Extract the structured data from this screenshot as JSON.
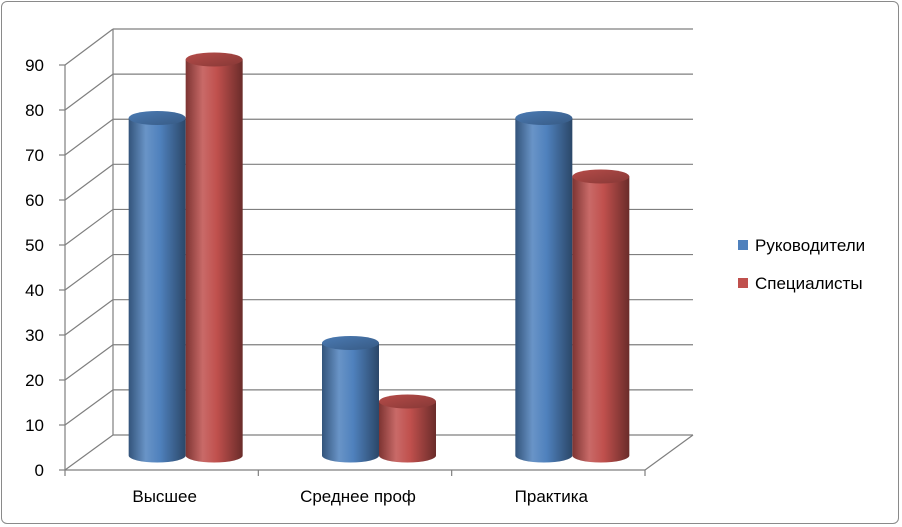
{
  "colors": {
    "series": [
      "#4f81bd",
      "#c0504d"
    ],
    "grid": "#7f7f7f",
    "background": "#ffffff"
  },
  "chart_data": {
    "type": "bar",
    "style": "3d-cylinder-clustered",
    "title": "",
    "xlabel": "",
    "ylabel": "",
    "categories": [
      "Высшее",
      "Среднее проф",
      "Практика"
    ],
    "series": [
      {
        "name": "Руководители",
        "values": [
          75,
          25,
          75
        ]
      },
      {
        "name": "Специалисты",
        "values": [
          88,
          12,
          62
        ]
      }
    ],
    "ylim": [
      0,
      90
    ],
    "yticks": [
      0,
      10,
      20,
      30,
      40,
      50,
      60,
      70,
      80,
      90
    ],
    "grid": true,
    "legend": "right"
  }
}
